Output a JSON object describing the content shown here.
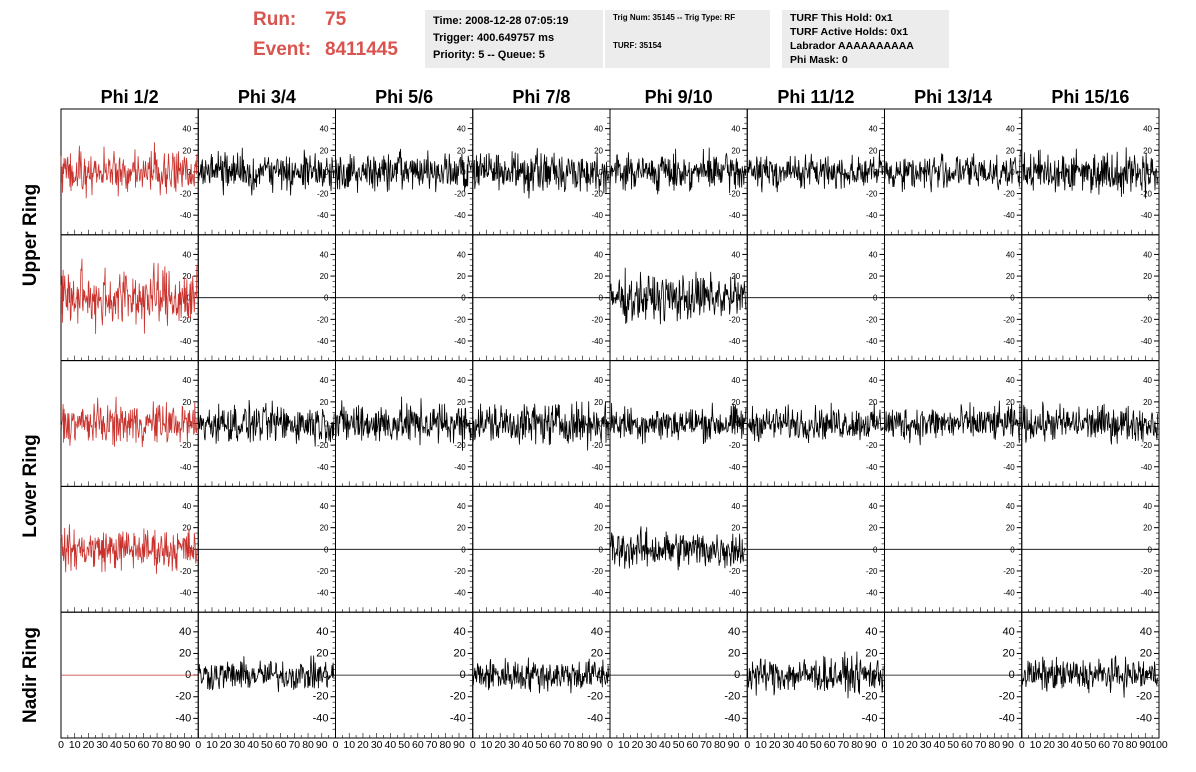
{
  "header": {
    "run_label": "Run:",
    "run_value": "75",
    "event_label": "Event:",
    "event_value": "8411445",
    "box1": [
      "Time: 2008-12-28 07:05:19",
      "Trigger: 400.649757 ms",
      "Priority: 5 -- Queue: 5"
    ],
    "box2": [
      "Trig Num: 35145 -- Trig Type: RF",
      "TURF: 35154"
    ],
    "box3": [
      "TURF This Hold: 0x1",
      "TURF Active Holds: 0x1",
      "Labrador AAAAAAAAAA",
      "Phi Mask: 0"
    ]
  },
  "colors": {
    "highlight": "#c8312c",
    "trace": "#000000",
    "run_text": "#d9534f"
  },
  "chart_data": {
    "type": "line",
    "columns": [
      "Phi 1/2",
      "Phi 3/4",
      "Phi 5/6",
      "Phi 7/8",
      "Phi 9/10",
      "Phi 11/12",
      "Phi 13/14",
      "Phi 15/16"
    ],
    "rows": [
      "Upper Ring",
      "Lower Ring",
      "Nadir Ring"
    ],
    "row_label_groups": [
      {
        "label": "Upper Ring",
        "panels": [
          0,
          1
        ]
      },
      {
        "label": "Lower Ring",
        "panels": [
          2,
          3
        ]
      },
      {
        "label": "Nadir Ring",
        "panels": [
          4
        ]
      }
    ],
    "xlim": [
      0,
      100
    ],
    "ylim": [
      -50,
      50
    ],
    "x_ticks": [
      "0",
      "10",
      "20",
      "30",
      "40",
      "50",
      "60",
      "70",
      "80",
      "90",
      "100"
    ],
    "y_ticks": [
      "40",
      "20",
      "0",
      "-20",
      "-40"
    ],
    "highlight_column": 0,
    "panels": [
      [
        "noise:16",
        "noise:14",
        "noise:14",
        "noise:14",
        "noise:13",
        "noise:12",
        "noise:13",
        "noise:15"
      ],
      [
        "noise:22",
        "flat",
        "flat",
        "flat",
        "noise:17",
        "flat",
        "flat",
        "flat"
      ],
      [
        "noise:15",
        "noise:14",
        "noise:15",
        "noise:15",
        "noise:13",
        "noise:12",
        "noise:13",
        "noise:13"
      ],
      [
        "noise:15",
        "flat",
        "flat",
        "flat",
        "noise:14",
        "flat",
        "flat",
        "flat"
      ],
      [
        "flat",
        "noise:11",
        "flat",
        "noise:12",
        "flat",
        "noise:13",
        "flat",
        "noise:12"
      ]
    ],
    "samples": 260
  }
}
